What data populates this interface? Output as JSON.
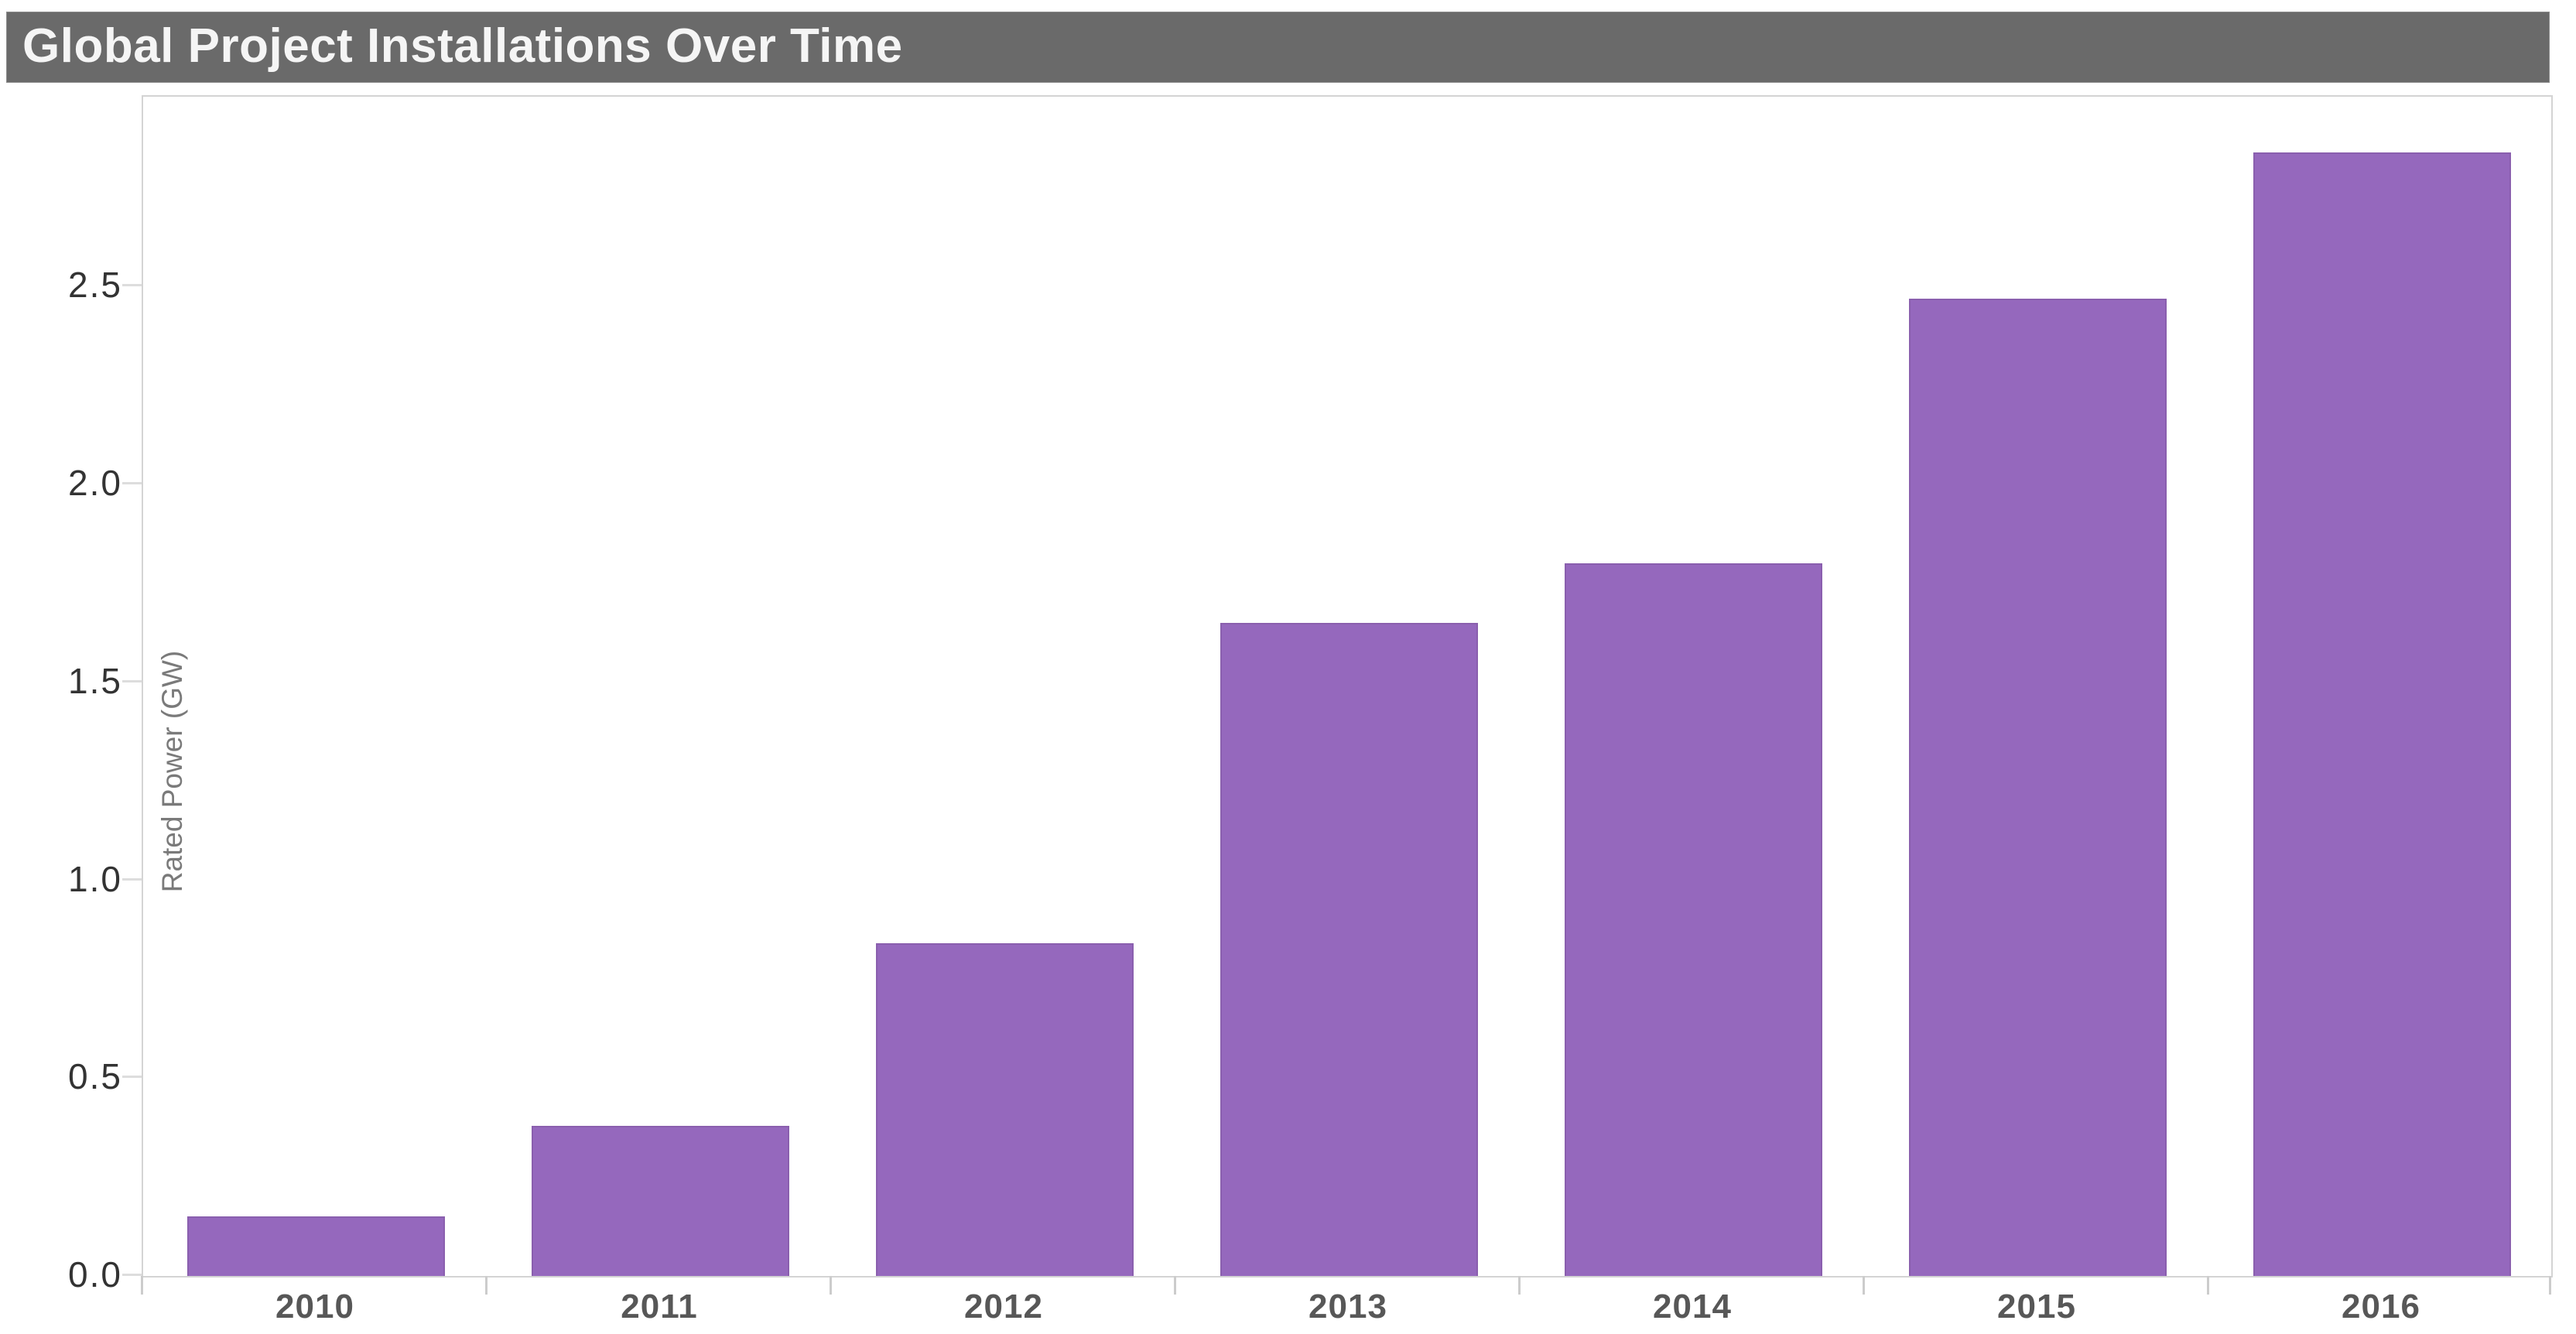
{
  "window": {
    "title_bar": {
      "text": "Global Project Installations Over Time",
      "background": "#6a6a6a",
      "text_color": "#f5f5f5"
    }
  },
  "chart_data": {
    "type": "bar",
    "title": "Global Project Installations Over Time",
    "categories": [
      "2010",
      "2011",
      "2012",
      "2013",
      "2014",
      "2015",
      "2016"
    ],
    "values": [
      0.15,
      0.38,
      0.84,
      1.65,
      1.8,
      2.47,
      2.84
    ],
    "xlabel": "",
    "ylabel": "Rated Power (GW)",
    "ylim": [
      0,
      2.98
    ],
    "yticks": [
      0.0,
      0.5,
      1.0,
      1.5,
      2.0,
      2.5
    ],
    "ytick_format": "one_decimal",
    "grid": false,
    "legend": "none",
    "bar_color": "#9568bd",
    "bar_edge_color": "#8a5fae",
    "axis_line_color": "#d4d4d4",
    "tick_mark_color": "#cccccc",
    "ytick_label_color": "#333333",
    "xtick_label_color": "#575757",
    "ylabel_color": "#7a7a7a",
    "plot_background": "#ffffff"
  }
}
